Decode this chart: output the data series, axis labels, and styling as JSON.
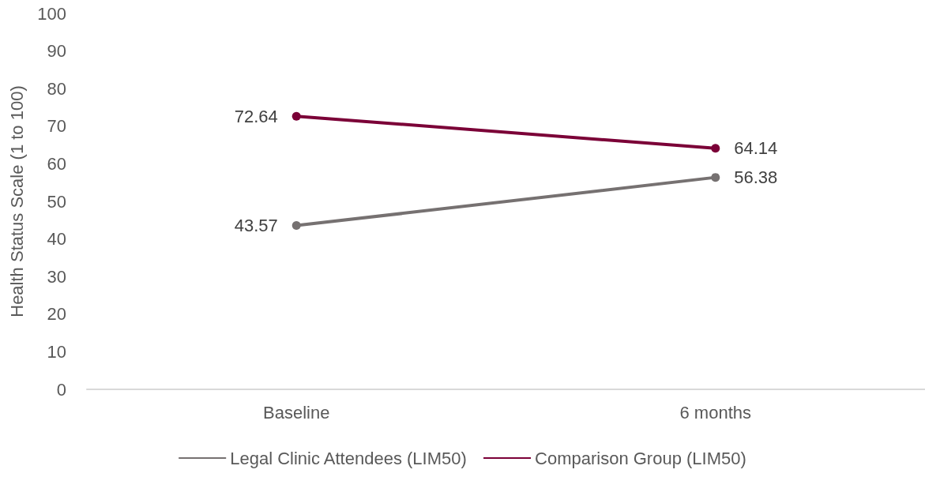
{
  "chart_data": {
    "type": "line",
    "ylabel": "Health Status Scale (1 to 100)",
    "categories": [
      "Baseline",
      "6 months"
    ],
    "series": [
      {
        "name": "Legal Clinic Attendees (LIM50)",
        "color": "#767171",
        "values": [
          43.57,
          56.38
        ]
      },
      {
        "name": "Comparison Group (LIM50)",
        "color": "#7b0037",
        "values": [
          72.64,
          64.14
        ]
      }
    ],
    "ylim": [
      0,
      100
    ],
    "yticks": [
      0,
      10,
      20,
      30,
      40,
      50,
      60,
      70,
      80,
      90,
      100
    ],
    "grid": false,
    "legend": "bottom",
    "marker": "circle",
    "line_style": "solid",
    "data_labels": true
  }
}
